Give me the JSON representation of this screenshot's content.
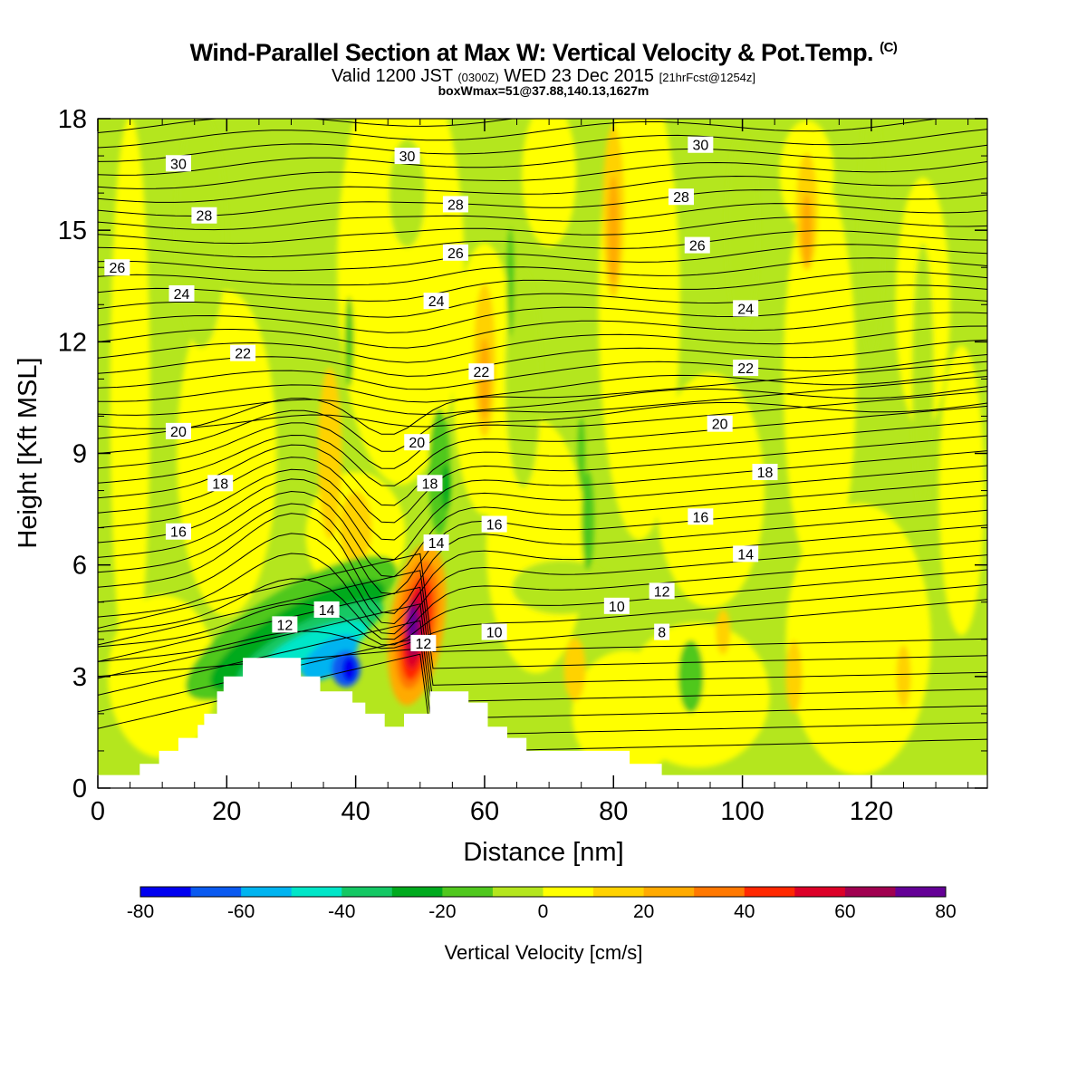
{
  "header": {
    "title": "Wind-Parallel Section at Max W: Vertical Velocity & Pot.Temp.",
    "copyright": "(C)",
    "valid_prefix": "Valid 1200 JST",
    "valid_utc": "(0300Z)",
    "valid_date": "WED 23 Dec 2015",
    "forecast": "[21hrFcst@1254z]",
    "box_info": "boxWmax=51@37.88,140.13,1627m"
  },
  "chart_data": {
    "type": "heatmap",
    "xlabel": "Distance [nm]",
    "ylabel": "Height [Kft MSL]",
    "xlim": [
      0,
      138
    ],
    "ylim": [
      0,
      18
    ],
    "x_ticks": [
      "0",
      "20",
      "40",
      "60",
      "80",
      "100",
      "120"
    ],
    "y_ticks": [
      "0",
      "3",
      "6",
      "9",
      "12",
      "15",
      "18"
    ],
    "colorbar": {
      "label": "Vertical Velocity [cm/s]",
      "tick_labels": [
        "-80",
        "-60",
        "-40",
        "-20",
        "0",
        "20",
        "40",
        "60",
        "80"
      ],
      "colors": [
        "#0000f0",
        "#0a5af0",
        "#00b4f0",
        "#00e6c8",
        "#14c864",
        "#00aa1e",
        "#50c81e",
        "#b4e61e",
        "#ffff00",
        "#ffd200",
        "#ffaa00",
        "#ff7800",
        "#ff2800",
        "#dc0028",
        "#a00050",
        "#640096"
      ]
    },
    "theta_labels": [
      {
        "text": "30",
        "x": 12.5,
        "y": 16.8
      },
      {
        "text": "30",
        "x": 48.0,
        "y": 17.0
      },
      {
        "text": "30",
        "x": 93.5,
        "y": 17.3
      },
      {
        "text": "28",
        "x": 16.5,
        "y": 15.4
      },
      {
        "text": "28",
        "x": 55.5,
        "y": 15.7
      },
      {
        "text": "28",
        "x": 90.5,
        "y": 15.9
      },
      {
        "text": "26",
        "x": 3.0,
        "y": 14.0
      },
      {
        "text": "26",
        "x": 55.5,
        "y": 14.4
      },
      {
        "text": "26",
        "x": 93.0,
        "y": 14.6
      },
      {
        "text": "24",
        "x": 13.0,
        "y": 13.3
      },
      {
        "text": "24",
        "x": 52.5,
        "y": 13.1
      },
      {
        "text": "24",
        "x": 100.5,
        "y": 12.9
      },
      {
        "text": "22",
        "x": 22.5,
        "y": 11.7
      },
      {
        "text": "22",
        "x": 59.5,
        "y": 11.2
      },
      {
        "text": "22",
        "x": 100.5,
        "y": 11.3
      },
      {
        "text": "20",
        "x": 12.5,
        "y": 9.6
      },
      {
        "text": "20",
        "x": 49.5,
        "y": 9.3
      },
      {
        "text": "20",
        "x": 96.5,
        "y": 9.8
      },
      {
        "text": "18",
        "x": 19.0,
        "y": 8.2
      },
      {
        "text": "18",
        "x": 51.5,
        "y": 8.2
      },
      {
        "text": "18",
        "x": 103.5,
        "y": 8.5
      },
      {
        "text": "16",
        "x": 12.5,
        "y": 6.9
      },
      {
        "text": "16",
        "x": 61.5,
        "y": 7.1
      },
      {
        "text": "16",
        "x": 93.5,
        "y": 7.3
      },
      {
        "text": "14",
        "x": 52.5,
        "y": 6.6
      },
      {
        "text": "14",
        "x": 35.5,
        "y": 4.8
      },
      {
        "text": "14",
        "x": 100.5,
        "y": 6.3
      },
      {
        "text": "12",
        "x": 29.0,
        "y": 4.4
      },
      {
        "text": "12",
        "x": 50.5,
        "y": 3.9
      },
      {
        "text": "12",
        "x": 87.5,
        "y": 5.3
      },
      {
        "text": "10",
        "x": 61.5,
        "y": 4.2
      },
      {
        "text": "10",
        "x": 80.5,
        "y": 4.9
      },
      {
        "text": "8",
        "x": 87.5,
        "y": 4.2
      }
    ]
  }
}
